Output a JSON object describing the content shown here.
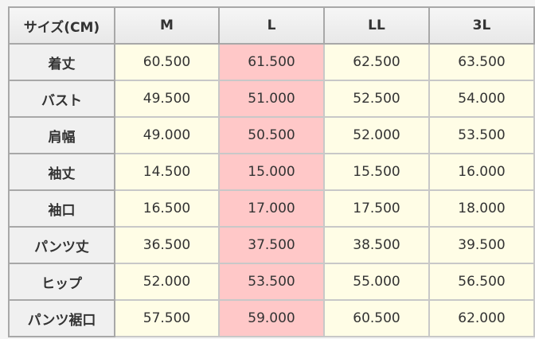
{
  "table": {
    "corner": "サイズ(CM)",
    "columns": [
      "M",
      "L",
      "LL",
      "3L"
    ],
    "highlight_column": "L",
    "colors": {
      "cell": "#fffde6",
      "highlight": "#ffc8c8",
      "label": "#f0f0f0"
    },
    "rows": [
      {
        "label": "着丈",
        "values": [
          "60.500",
          "61.500",
          "62.500",
          "63.500"
        ]
      },
      {
        "label": "バスト",
        "values": [
          "49.500",
          "51.000",
          "52.500",
          "54.000"
        ]
      },
      {
        "label": "肩幅",
        "values": [
          "49.000",
          "50.500",
          "52.000",
          "53.500"
        ]
      },
      {
        "label": "袖丈",
        "values": [
          "14.500",
          "15.000",
          "15.500",
          "16.000"
        ]
      },
      {
        "label": "袖口",
        "values": [
          "16.500",
          "17.000",
          "17.500",
          "18.000"
        ]
      },
      {
        "label": "パンツ丈",
        "values": [
          "36.500",
          "37.500",
          "38.500",
          "39.500"
        ]
      },
      {
        "label": "ヒップ",
        "values": [
          "52.000",
          "53.500",
          "55.000",
          "56.500"
        ]
      },
      {
        "label": "パンツ裾口",
        "values": [
          "57.500",
          "59.000",
          "60.500",
          "62.000"
        ]
      }
    ]
  }
}
